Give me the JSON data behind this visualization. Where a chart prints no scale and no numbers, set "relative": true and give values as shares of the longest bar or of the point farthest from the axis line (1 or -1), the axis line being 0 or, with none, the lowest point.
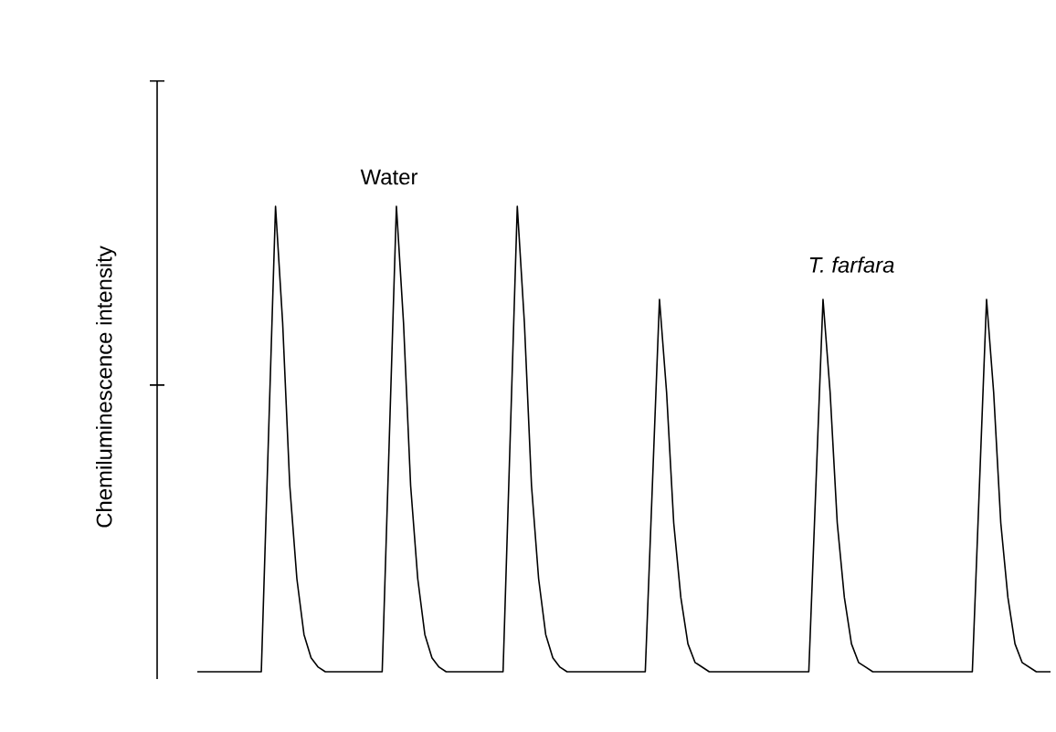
{
  "chart_data": {
    "type": "line",
    "relative": true,
    "ylabel": "Chemiluminescence intensity",
    "color": "#000000",
    "annotations": [
      "Water",
      "T. farfara"
    ],
    "categories": [
      null,
      null,
      null,
      null,
      null,
      null,
      null,
      null,
      null,
      null,
      null,
      null,
      null,
      null,
      null,
      null,
      null,
      null,
      null,
      null,
      null,
      null,
      null,
      null,
      null,
      null,
      null,
      null,
      null,
      null,
      null,
      null,
      null,
      null,
      null,
      null,
      null,
      null,
      null,
      null,
      null,
      null,
      null,
      null,
      null,
      null,
      null,
      null,
      null,
      null,
      null,
      null,
      null,
      null,
      null,
      null,
      null,
      null,
      null,
      null,
      null,
      null,
      null,
      null,
      null,
      null,
      null,
      null,
      null,
      null,
      null,
      null,
      null,
      null,
      null,
      null,
      null,
      null,
      null,
      null,
      null,
      null,
      null,
      null,
      null,
      null,
      null,
      null,
      null,
      null,
      null,
      null,
      null,
      null,
      null,
      null,
      null,
      null,
      null,
      null,
      null,
      null,
      null,
      null,
      null,
      null,
      null,
      null,
      null,
      null,
      null,
      null,
      null,
      null,
      null,
      null,
      null,
      null,
      null,
      null,
      null
    ],
    "values": [
      0,
      0,
      0,
      0,
      0,
      0,
      0,
      0,
      0,
      0,
      0.5,
      1,
      0.75,
      0.4,
      0.2,
      0.08,
      0.03,
      0.01,
      0,
      0,
      0,
      0,
      0,
      0,
      0,
      0,
      0,
      0.5,
      1,
      0.75,
      0.4,
      0.2,
      0.08,
      0.03,
      0.01,
      0,
      0,
      0,
      0,
      0,
      0,
      0,
      0,
      0,
      0.5,
      1,
      0.75,
      0.4,
      0.2,
      0.08,
      0.03,
      0.01,
      0,
      0,
      0,
      0,
      0,
      0,
      0,
      0,
      0,
      0,
      0,
      0,
      0.4,
      0.8,
      0.6,
      0.32,
      0.16,
      0.06,
      0.02,
      0.01,
      0,
      0,
      0,
      0,
      0,
      0,
      0,
      0,
      0,
      0,
      0,
      0,
      0,
      0,
      0,
      0.4,
      0.8,
      0.6,
      0.32,
      0.16,
      0.06,
      0.02,
      0.01,
      0,
      0,
      0,
      0,
      0,
      0,
      0,
      0,
      0,
      0,
      0,
      0,
      0,
      0,
      0,
      0.4,
      0.8,
      0.6,
      0.32,
      0.16,
      0.06,
      0.02,
      0.01,
      0,
      0,
      0
    ]
  }
}
